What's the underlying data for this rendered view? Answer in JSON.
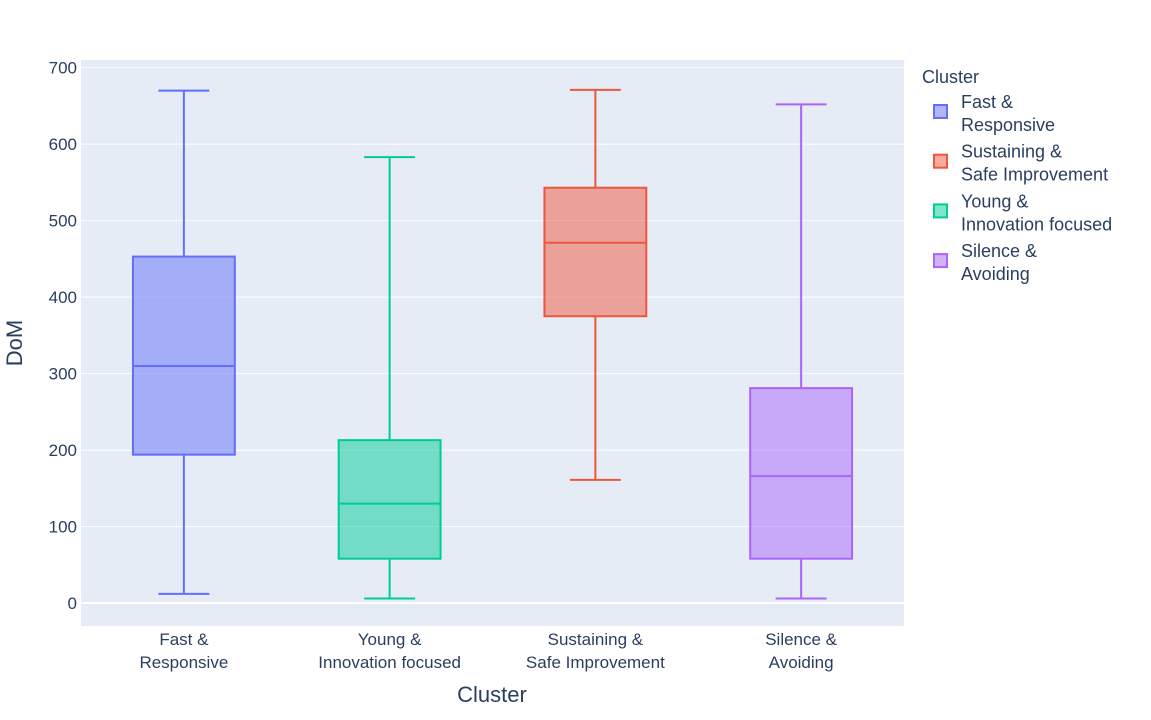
{
  "chart_data": {
    "type": "box",
    "xlabel": "Cluster",
    "ylabel": "DoM",
    "ylim": [
      -30,
      710
    ],
    "yticks": [
      0,
      100,
      200,
      300,
      400,
      500,
      600,
      700
    ],
    "grid": true,
    "plot_background": "#e5ecf6",
    "legend": {
      "title": "Cluster",
      "placement": "right",
      "entries": [
        {
          "series": 0,
          "lines": [
            "Fast &",
            "Responsive"
          ]
        },
        {
          "series": 2,
          "lines": [
            "Sustaining &",
            "Safe Improvement"
          ]
        },
        {
          "series": 1,
          "lines": [
            "Young &",
            "Innovation focused"
          ]
        },
        {
          "series": 3,
          "lines": [
            "Silence &",
            "Avoiding"
          ]
        }
      ]
    },
    "series": [
      {
        "name": "Fast & Responsive",
        "lines": [
          "Fast &",
          "Responsive"
        ],
        "color": "#636efa",
        "min": 12,
        "q1": 194,
        "median": 310,
        "q3": 453,
        "max": 670
      },
      {
        "name": "Young & Innovation focused",
        "lines": [
          "Young &",
          "Innovation focused"
        ],
        "color": "#00cc96",
        "min": 6,
        "q1": 58,
        "median": 130,
        "q3": 213,
        "max": 583
      },
      {
        "name": "Sustaining & Safe Improvement",
        "lines": [
          "Sustaining &",
          "Safe Improvement"
        ],
        "color": "#ef553b",
        "min": 161,
        "q1": 375,
        "median": 471,
        "q3": 543,
        "max": 671
      },
      {
        "name": "Silence & Avoiding",
        "lines": [
          "Silence &",
          "Avoiding"
        ],
        "color": "#ab63fa",
        "min": 6,
        "q1": 58,
        "median": 166,
        "q3": 281,
        "max": 652
      }
    ]
  }
}
